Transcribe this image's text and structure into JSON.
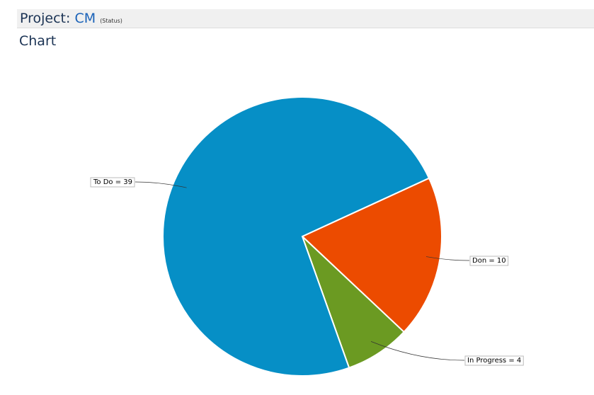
{
  "header": {
    "title": "Project:",
    "project": "CM",
    "note": "(Status)",
    "section": "Chart"
  },
  "chart_data": {
    "type": "pie",
    "values": [
      10,
      4,
      39
    ],
    "value_labels": [
      "Don = 10",
      "In Progress = 4",
      "To Do = 39"
    ],
    "colors": [
      "#ec4b00",
      "#6b9a22",
      "#068fc6"
    ]
  }
}
